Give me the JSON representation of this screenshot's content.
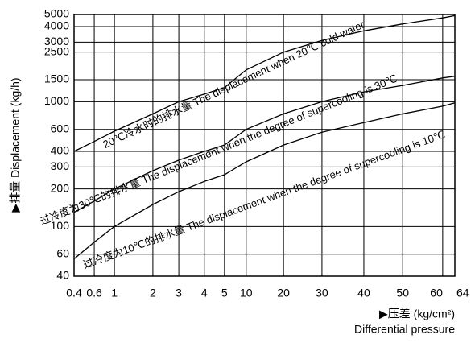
{
  "chart_data": {
    "type": "line",
    "y_label": "▶排量 Displacement (kg/h)",
    "x_label": "▶压差 (kg/cm²)",
    "x_label_en": "Differential pressure",
    "x": [
      0.4,
      0.6,
      1,
      2,
      3,
      4,
      5,
      10,
      20,
      30,
      40,
      50,
      60,
      64
    ],
    "xticks": [
      0.4,
      0.6,
      1,
      2,
      3,
      4,
      5,
      10,
      20,
      30,
      40,
      50,
      60,
      64
    ],
    "xlim": [
      0.4,
      64
    ],
    "ylim": [
      40,
      5000
    ],
    "yticks": [
      40,
      60,
      100,
      200,
      300,
      400,
      600,
      1000,
      1500,
      2500,
      3000,
      4000,
      5000
    ],
    "ylog": true,
    "grid": true,
    "series": [
      {
        "name": "20℃冷水时的排水量 The displacement when 20℃ cold water",
        "color": "#000000",
        "values": [
          400,
          480,
          580,
          800,
          1000,
          1150,
          1300,
          1800,
          2500,
          3100,
          3700,
          4200,
          4700,
          4900
        ]
      },
      {
        "name": "过冷度为30℃的排水量 The displacement when the degree of supercooling is 30℃",
        "color": "#000000",
        "values": [
          130,
          160,
          200,
          280,
          340,
          400,
          450,
          600,
          800,
          1000,
          1200,
          1350,
          1550,
          1600
        ]
      },
      {
        "name": "过冷度为10℃的排水量 The displacement when the degree of supercooling is 10℃",
        "color": "#000000",
        "values": [
          55,
          75,
          100,
          150,
          190,
          230,
          260,
          330,
          450,
          570,
          680,
          800,
          920,
          980
        ]
      }
    ]
  }
}
